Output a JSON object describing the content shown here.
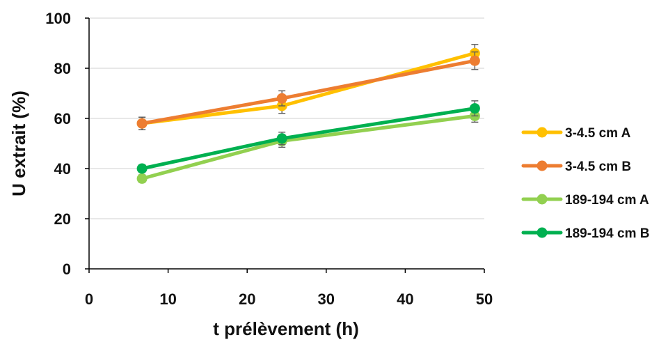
{
  "chart_data": {
    "type": "line",
    "title": "",
    "xlabel": "t prélèvement (h)",
    "ylabel": "U extrait (%)",
    "xlim": [
      0,
      50
    ],
    "ylim": [
      0,
      100
    ],
    "xticks": [
      "0",
      "10",
      "20",
      "30",
      "40",
      "50"
    ],
    "yticks": [
      "0",
      "20",
      "40",
      "60",
      "80",
      "100"
    ],
    "grid": "horizontal",
    "legend_position": "right",
    "x": [
      6.7,
      24.4,
      48.8
    ],
    "series": [
      {
        "name": "3-4.5 cm A",
        "color": "#FFC000",
        "values": [
          58,
          65,
          86
        ],
        "errors": [
          2.5,
          3.0,
          3.5
        ]
      },
      {
        "name": "3-4.5 cm B",
        "color": "#ED7D31",
        "values": [
          58,
          68,
          83
        ],
        "errors": [
          2.5,
          3.0,
          3.5
        ]
      },
      {
        "name": "189-194 cm A",
        "color": "#92D050",
        "values": [
          36,
          51,
          61
        ],
        "errors": [
          1.5,
          2.5,
          2.5
        ]
      },
      {
        "name": "189-194 cm B",
        "color": "#00B050",
        "values": [
          40,
          52,
          64
        ],
        "errors": [
          1.5,
          2.5,
          3.0
        ]
      }
    ]
  }
}
